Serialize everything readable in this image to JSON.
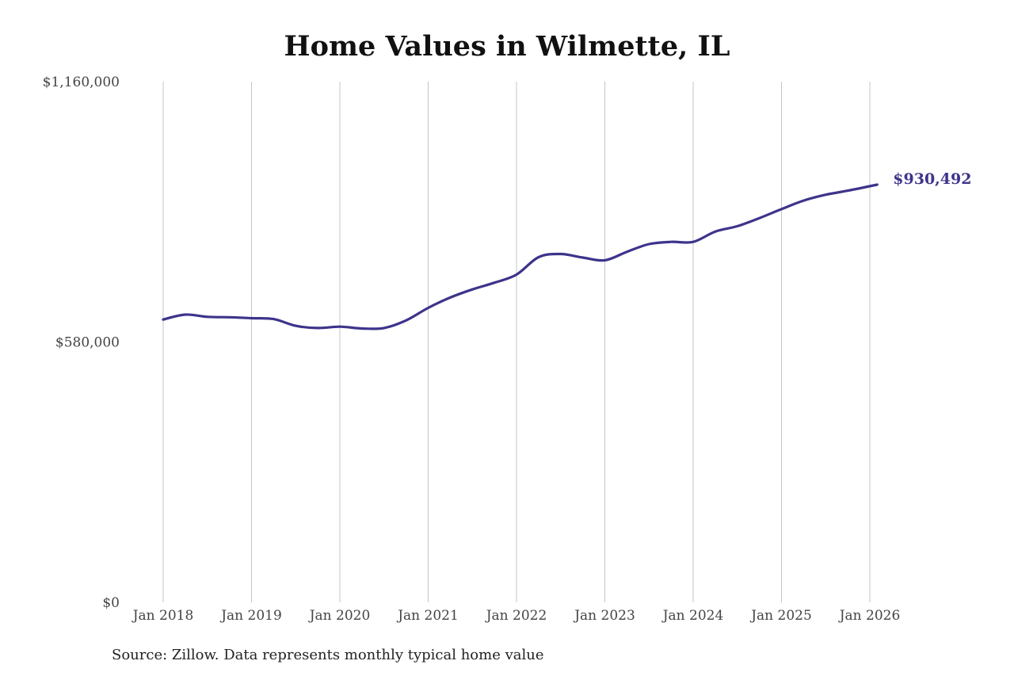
{
  "chart_data": {
    "type": "line",
    "title": "Home Values in Wilmette, IL",
    "xlabel": "",
    "ylabel": "",
    "ylim": [
      0,
      1160000
    ],
    "yticks": [
      {
        "value": 0,
        "label": "$0"
      },
      {
        "value": 580000,
        "label": "$580,000"
      },
      {
        "value": 1160000,
        "label": "$1,160,000"
      }
    ],
    "xticks": [
      {
        "value": "2018-01",
        "label": "Jan 2018"
      },
      {
        "value": "2019-01",
        "label": "Jan 2019"
      },
      {
        "value": "2020-01",
        "label": "Jan 2020"
      },
      {
        "value": "2021-01",
        "label": "Jan 2021"
      },
      {
        "value": "2022-01",
        "label": "Jan 2022"
      },
      {
        "value": "2023-01",
        "label": "Jan 2023"
      },
      {
        "value": "2024-01",
        "label": "Jan 2024"
      },
      {
        "value": "2025-01",
        "label": "Jan 2025"
      },
      {
        "value": "2026-01",
        "label": "Jan 2026"
      }
    ],
    "grid": "vertical",
    "legend": "none",
    "line_color": "#3d348b",
    "series": [
      {
        "x": [
          "2018-01",
          "2018-04",
          "2018-07",
          "2018-10",
          "2019-01",
          "2019-04",
          "2019-07",
          "2019-10",
          "2020-01",
          "2020-04",
          "2020-07",
          "2020-10",
          "2021-01",
          "2021-04",
          "2021-07",
          "2021-10",
          "2022-01",
          "2022-04",
          "2022-07",
          "2022-10",
          "2023-01",
          "2023-04",
          "2023-07",
          "2023-10",
          "2024-01",
          "2024-04",
          "2024-07",
          "2024-10",
          "2025-01",
          "2025-04",
          "2025-07",
          "2025-10",
          "2026-02"
        ],
        "values": [
          630000,
          641000,
          636000,
          635000,
          633000,
          631000,
          616000,
          611000,
          614000,
          610000,
          611000,
          628000,
          656000,
          679000,
          697000,
          712000,
          730000,
          769000,
          776000,
          768000,
          762000,
          781000,
          798000,
          803000,
          803000,
          826000,
          838000,
          856000,
          876000,
          895000,
          908000,
          917000,
          930492
        ]
      }
    ],
    "end_label": "$930,492"
  },
  "source_note": "Source: Zillow. Data represents monthly typical home value"
}
